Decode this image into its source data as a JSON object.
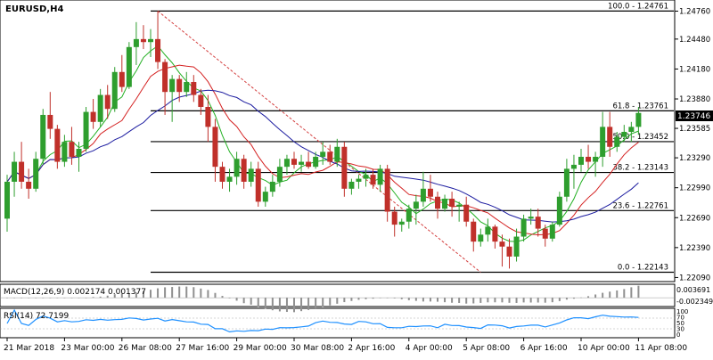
{
  "chart_data": {
    "type": "candlestick",
    "title": "EURUSD,H4",
    "price_range": [
      1.22085,
      1.24836
    ],
    "price_ticks": [
      "1.24760",
      "1.24480",
      "1.24180",
      "1.23880",
      "1.23585",
      "1.23290",
      "1.22990",
      "1.22690",
      "1.22390",
      "1.22090"
    ],
    "current_price_label": "1.23746",
    "current_price": 1.23746,
    "x_labels": [
      "21 Mar 2018",
      "23 Mar 00:00",
      "26 Mar 08:00",
      "27 Mar 16:00",
      "29 Mar 00:00",
      "30 Mar 08:00",
      "2 Apr 16:00",
      "4 Apr 00:00",
      "5 Apr 08:00",
      "6 Apr 16:00",
      "10 Apr 00:00",
      "11 Apr 08:00"
    ],
    "x_label_bar": [
      0,
      8,
      16,
      24,
      32,
      40,
      48,
      56,
      64,
      72,
      80,
      88
    ],
    "fib_levels": [
      {
        "label": "100.0 - 1.24761",
        "value": 1.24761,
        "start_bar": 20
      },
      {
        "label": "61.8 - 1.23761",
        "value": 1.23761,
        "start_bar": 20
      },
      {
        "label": "50.0 - 1.23452",
        "value": 1.23452,
        "start_bar": 20
      },
      {
        "label": "38.2 - 1.23143",
        "value": 1.23143,
        "start_bar": 20
      },
      {
        "label": "23.6 - 1.22761",
        "value": 1.22761,
        "start_bar": 20
      },
      {
        "label": "0.0 - 1.22143",
        "value": 1.22143,
        "start_bar": 20
      }
    ],
    "fib_trendline": {
      "from_bar": 21,
      "from_value": 1.24761,
      "to_bar": 66,
      "to_value": 1.22143
    },
    "candles": [
      [
        1.2268,
        1.2312,
        1.2255,
        1.2305
      ],
      [
        1.2305,
        1.2335,
        1.229,
        1.2325
      ],
      [
        1.2325,
        1.2345,
        1.2298,
        1.2305
      ],
      [
        1.2305,
        1.2318,
        1.2288,
        1.2298
      ],
      [
        1.2298,
        1.2335,
        1.2295,
        1.2328
      ],
      [
        1.2328,
        1.2378,
        1.2322,
        1.2372
      ],
      [
        1.2372,
        1.2395,
        1.2348,
        1.2358
      ],
      [
        1.2358,
        1.2362,
        1.2318,
        1.2325
      ],
      [
        1.2325,
        1.2352,
        1.232,
        1.2345
      ],
      [
        1.2345,
        1.236,
        1.2322,
        1.233
      ],
      [
        1.233,
        1.2345,
        1.2315,
        1.2338
      ],
      [
        1.2338,
        1.238,
        1.2335,
        1.2375
      ],
      [
        1.2375,
        1.2388,
        1.2358,
        1.2365
      ],
      [
        1.2365,
        1.2398,
        1.236,
        1.2392
      ],
      [
        1.2392,
        1.2402,
        1.2368,
        1.2378
      ],
      [
        1.2378,
        1.242,
        1.2375,
        1.2415
      ],
      [
        1.2415,
        1.2432,
        1.2395,
        1.24
      ],
      [
        1.24,
        1.2445,
        1.2398,
        1.244
      ],
      [
        1.244,
        1.2465,
        1.2422,
        1.2448
      ],
      [
        1.2448,
        1.2462,
        1.2438,
        1.2445
      ],
      [
        1.2445,
        1.2458,
        1.243,
        1.2448
      ],
      [
        1.2448,
        1.2476,
        1.2418,
        1.2425
      ],
      [
        1.2425,
        1.2428,
        1.2372,
        1.2395
      ],
      [
        1.2395,
        1.2412,
        1.2365,
        1.2408
      ],
      [
        1.2408,
        1.2412,
        1.2385,
        1.2395
      ],
      [
        1.2395,
        1.2415,
        1.239,
        1.2405
      ],
      [
        1.2405,
        1.2412,
        1.2385,
        1.2392
      ],
      [
        1.2392,
        1.2398,
        1.2372,
        1.238
      ],
      [
        1.238,
        1.2392,
        1.2345,
        1.236
      ],
      [
        1.236,
        1.2368,
        1.2305,
        1.232
      ],
      [
        1.232,
        1.2325,
        1.2298,
        1.2305
      ],
      [
        1.2305,
        1.2318,
        1.2295,
        1.231
      ],
      [
        1.231,
        1.2335,
        1.2302,
        1.2328
      ],
      [
        1.2328,
        1.2332,
        1.2298,
        1.2305
      ],
      [
        1.2305,
        1.2325,
        1.23,
        1.2318
      ],
      [
        1.2318,
        1.2325,
        1.228,
        1.2285
      ],
      [
        1.2285,
        1.23,
        1.228,
        1.2295
      ],
      [
        1.2295,
        1.2312,
        1.229,
        1.2305
      ],
      [
        1.2305,
        1.2328,
        1.23,
        1.232
      ],
      [
        1.232,
        1.2332,
        1.2312,
        1.2328
      ],
      [
        1.2328,
        1.2335,
        1.2318,
        1.2322
      ],
      [
        1.2322,
        1.2332,
        1.2315,
        1.2325
      ],
      [
        1.2325,
        1.2335,
        1.2318,
        1.232
      ],
      [
        1.232,
        1.2335,
        1.2318,
        1.233
      ],
      [
        1.233,
        1.2345,
        1.2322,
        1.2335
      ],
      [
        1.2335,
        1.2342,
        1.2322,
        1.2325
      ],
      [
        1.2325,
        1.2348,
        1.232,
        1.234
      ],
      [
        1.234,
        1.2345,
        1.229,
        1.2298
      ],
      [
        1.2298,
        1.2308,
        1.2292,
        1.2305
      ],
      [
        1.2305,
        1.2312,
        1.2298,
        1.2308
      ],
      [
        1.2308,
        1.2318,
        1.23,
        1.2312
      ],
      [
        1.2312,
        1.2318,
        1.2298,
        1.2302
      ],
      [
        1.2302,
        1.2322,
        1.2295,
        1.2318
      ],
      [
        1.2318,
        1.2322,
        1.2265,
        1.2275
      ],
      [
        1.2275,
        1.228,
        1.225,
        1.2262
      ],
      [
        1.2262,
        1.2268,
        1.2255,
        1.2265
      ],
      [
        1.2265,
        1.2282,
        1.2258,
        1.2278
      ],
      [
        1.2278,
        1.2292,
        1.2262,
        1.2285
      ],
      [
        1.2285,
        1.2315,
        1.228,
        1.2298
      ],
      [
        1.2298,
        1.2312,
        1.2285,
        1.229
      ],
      [
        1.229,
        1.2295,
        1.2268,
        1.2278
      ],
      [
        1.2278,
        1.2292,
        1.2275,
        1.2288
      ],
      [
        1.2288,
        1.2295,
        1.227,
        1.228
      ],
      [
        1.228,
        1.2285,
        1.2265,
        1.2282
      ],
      [
        1.2282,
        1.229,
        1.226,
        1.2265
      ],
      [
        1.2265,
        1.2268,
        1.2235,
        1.2245
      ],
      [
        1.2245,
        1.2258,
        1.224,
        1.2252
      ],
      [
        1.2252,
        1.2268,
        1.2245,
        1.226
      ],
      [
        1.226,
        1.2262,
        1.2238,
        1.2245
      ],
      [
        1.2245,
        1.2252,
        1.222,
        1.224
      ],
      [
        1.224,
        1.2248,
        1.2218,
        1.223
      ],
      [
        1.223,
        1.2258,
        1.2225,
        1.225
      ],
      [
        1.225,
        1.2272,
        1.2245,
        1.2268
      ],
      [
        1.2268,
        1.2278,
        1.2262,
        1.227
      ],
      [
        1.227,
        1.2278,
        1.225,
        1.2258
      ],
      [
        1.2258,
        1.2262,
        1.224,
        1.2248
      ],
      [
        1.2248,
        1.2265,
        1.2245,
        1.2262
      ],
      [
        1.2262,
        1.2295,
        1.226,
        1.229
      ],
      [
        1.229,
        1.2328,
        1.2285,
        1.2318
      ],
      [
        1.2318,
        1.2332,
        1.2298,
        1.2322
      ],
      [
        1.2322,
        1.2338,
        1.2315,
        1.233
      ],
      [
        1.233,
        1.2342,
        1.2318,
        1.2325
      ],
      [
        1.2325,
        1.2335,
        1.231,
        1.233
      ],
      [
        1.233,
        1.2375,
        1.232,
        1.236
      ],
      [
        1.236,
        1.2375,
        1.233,
        1.234
      ],
      [
        1.234,
        1.2355,
        1.2335,
        1.235
      ],
      [
        1.235,
        1.2362,
        1.2345,
        1.2355
      ],
      [
        1.2355,
        1.2365,
        1.2345,
        1.236
      ],
      [
        1.236,
        1.238,
        1.2352,
        1.2374
      ]
    ],
    "macd": {
      "label": "MACD(12,26,9) 0.002174 0.001377",
      "axis_labels": [
        "0.003691",
        "-0.002349"
      ],
      "range": [
        -0.0026,
        0.004
      ]
    },
    "rsi": {
      "label": "RSI(14) 72.7199",
      "value": 72.7199,
      "axis_labels": [
        "100",
        "70",
        "50",
        "30",
        "0"
      ]
    },
    "colors": {
      "bull": "#2e9e2e",
      "bear": "#c0302a",
      "ma_fast": "#22b022",
      "ma_mid": "#d42020",
      "ma_slow": "#1c1ca0",
      "rsi": "#1e90ff",
      "trend": "#d44040"
    }
  }
}
